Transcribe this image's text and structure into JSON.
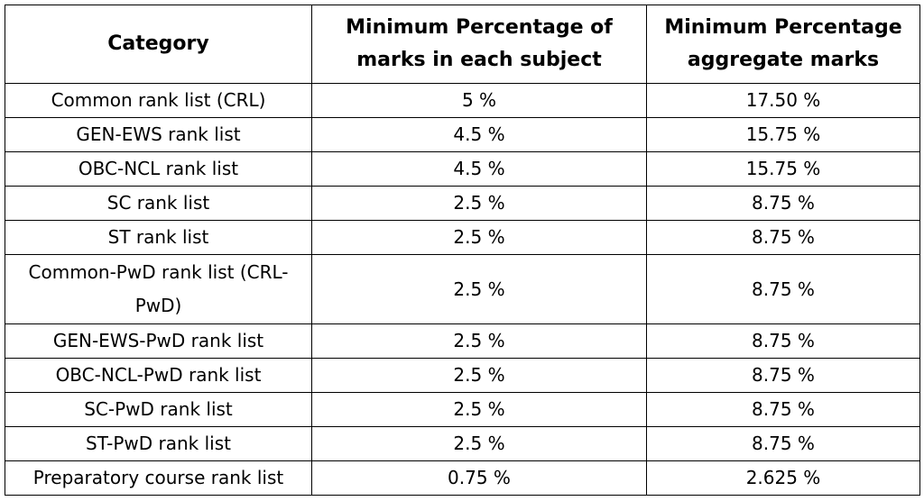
{
  "table": {
    "headers": [
      "Category",
      "Minimum Percentage of marks in each subject",
      "Minimum Percentage aggregate marks"
    ],
    "rows": [
      [
        "Common rank list (CRL)",
        "5 %",
        "17.50 %"
      ],
      [
        "GEN-EWS rank list",
        "4.5 %",
        "15.75 %"
      ],
      [
        "OBC-NCL rank list",
        "4.5 %",
        "15.75 %"
      ],
      [
        "SC rank list",
        "2.5 %",
        "8.75 %"
      ],
      [
        "ST rank list",
        "2.5 %",
        "8.75 %"
      ],
      [
        "Common-PwD rank list (CRL-PwD)",
        "2.5 %",
        "8.75 %"
      ],
      [
        "GEN-EWS-PwD rank list",
        "2.5 %",
        "8.75 %"
      ],
      [
        "OBC-NCL-PwD rank list",
        "2.5 %",
        "8.75 %"
      ],
      [
        "SC-PwD rank list",
        "2.5 %",
        "8.75 %"
      ],
      [
        "ST-PwD rank list",
        "2.5 %",
        "8.75 %"
      ],
      [
        "Preparatory course rank list",
        "0.75 %",
        "2.625 %"
      ]
    ]
  }
}
